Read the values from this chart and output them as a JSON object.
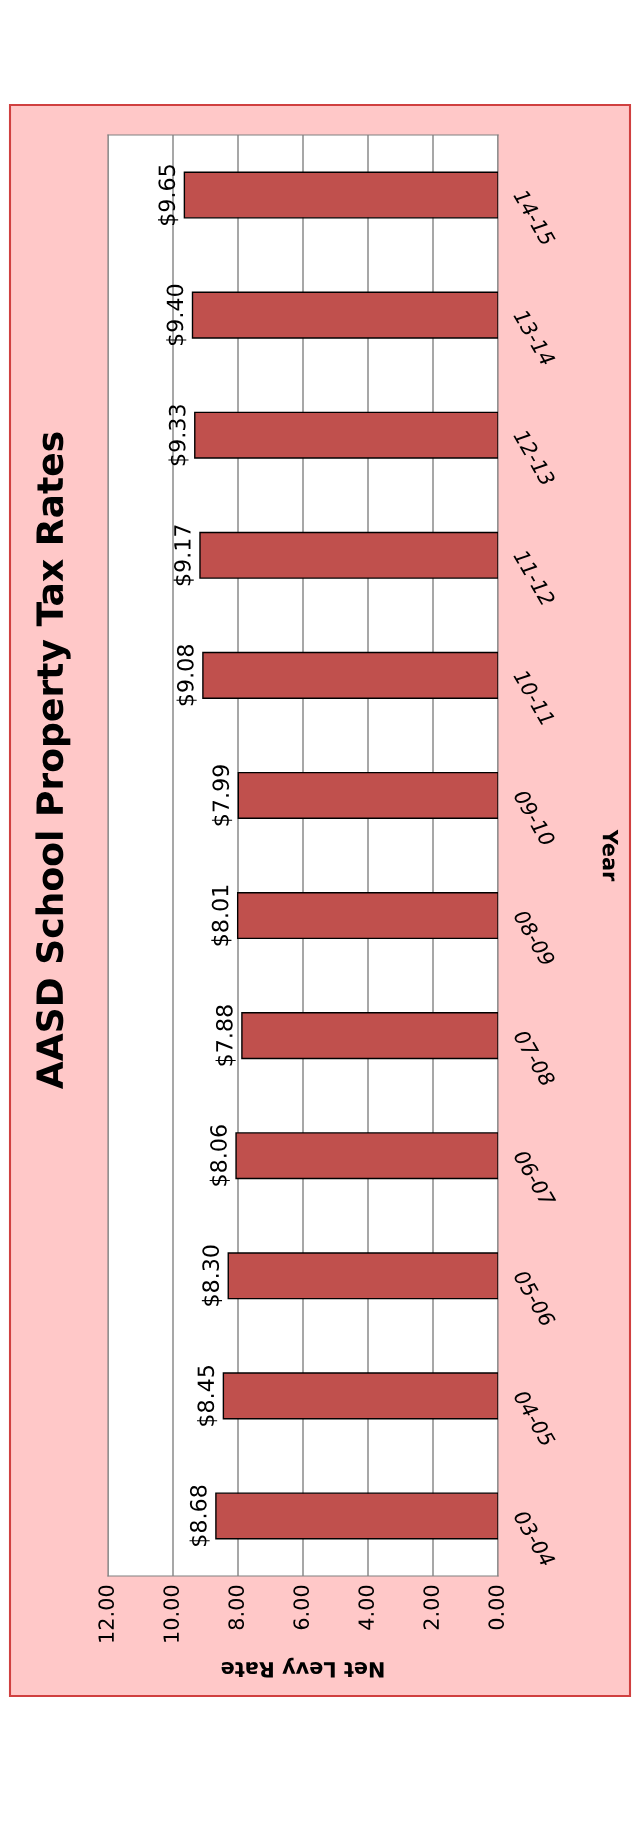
{
  "chart_data": {
    "type": "bar",
    "orientation": "horizontal",
    "title": "AASD School Property Tax Rates",
    "xlabel": "Net Levy Rate",
    "ylabel": "Year",
    "categories": [
      "14-15",
      "13-14",
      "12-13",
      "11-12",
      "10-11",
      "09-10",
      "08-09",
      "07-08",
      "06-07",
      "05-06",
      "04-05",
      "03-04"
    ],
    "values": [
      9.65,
      9.4,
      9.33,
      9.17,
      9.08,
      7.99,
      8.01,
      7.88,
      8.06,
      8.3,
      8.45,
      8.68
    ],
    "value_labels": [
      "$9.65",
      "$9.40",
      "$9.33",
      "$9.17",
      "$9.08",
      "$7.99",
      "$8.01",
      "$7.88",
      "$8.06",
      "$8.30",
      "$8.45",
      "$8.68"
    ],
    "color": "#c0504d",
    "xlim": [
      12,
      0
    ],
    "xticks": [
      {
        "value": 12,
        "label": "12.00"
      },
      {
        "value": 10,
        "label": "10.00"
      },
      {
        "value": 8,
        "label": "8.00"
      },
      {
        "value": 6,
        "label": "6.00"
      },
      {
        "value": 4,
        "label": "4.00"
      },
      {
        "value": 2,
        "label": "2.00"
      },
      {
        "value": 0,
        "label": "0.00"
      }
    ],
    "grid": "x",
    "legend": false
  }
}
